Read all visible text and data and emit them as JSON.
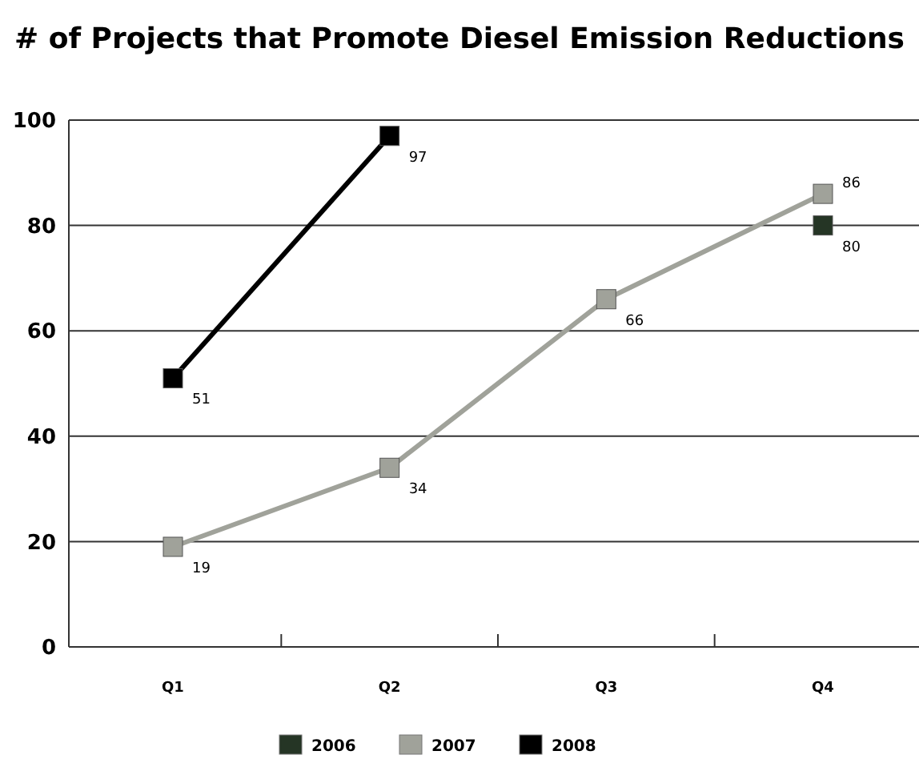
{
  "chart_data": {
    "type": "line",
    "title": "# of Projects that Promote Diesel Emission Reductions",
    "categories": [
      "Q1",
      "Q2",
      "Q3",
      "Q4"
    ],
    "series": [
      {
        "name": "2006",
        "color": "#253525",
        "values": [
          null,
          null,
          null,
          80
        ]
      },
      {
        "name": "2007",
        "color": "#a0a29a",
        "values": [
          19,
          34,
          66,
          86
        ]
      },
      {
        "name": "2008",
        "color": "#000000",
        "values": [
          51,
          97,
          null,
          null
        ]
      }
    ],
    "ylim": [
      0,
      100
    ],
    "yticks": [
      0,
      20,
      40,
      60,
      80,
      100
    ],
    "grid": "y",
    "legend": "bottom",
    "marker": "square",
    "data_labels": true
  }
}
